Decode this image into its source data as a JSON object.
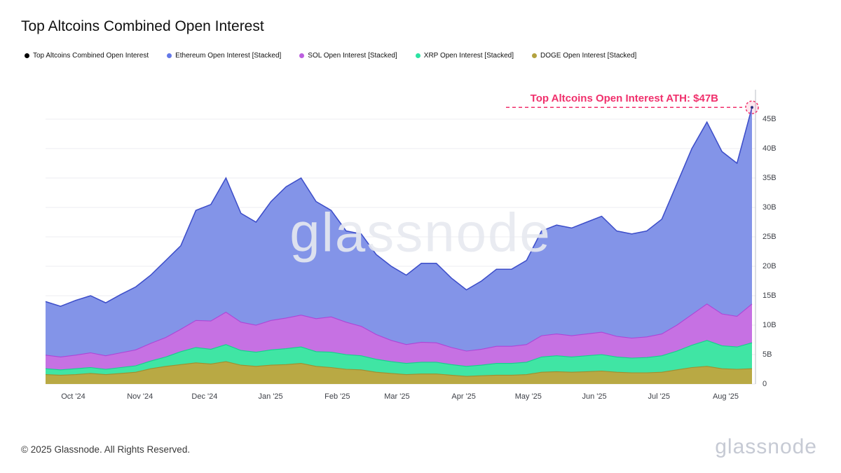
{
  "header": {
    "title": "Top Altcoins Combined Open Interest"
  },
  "legend": {
    "items": [
      {
        "label": "Top Altcoins Combined Open Interest",
        "color": "#000000"
      },
      {
        "label": "Ethereum Open Interest [Stacked]",
        "color": "#6478e8"
      },
      {
        "label": "SOL Open Interest [Stacked]",
        "color": "#bc5fdf"
      },
      {
        "label": "XRP Open Interest [Stacked]",
        "color": "#2be3a2"
      },
      {
        "label": "DOGE Open Interest [Stacked]",
        "color": "#b3a23f"
      }
    ]
  },
  "annotation": {
    "text": "Top Altcoins Open Interest ATH: $47B",
    "value": 47,
    "color": "#f0306c"
  },
  "watermark": {
    "text": "glassnode"
  },
  "footer": {
    "copyright": "© 2025 Glassnode. All Rights Reserved.",
    "logo": "glassnode"
  },
  "chart_data": {
    "type": "area",
    "stacked": true,
    "title": "Top Altcoins Combined Open Interest",
    "unit": "USD billions",
    "x_start": "2024-09-18",
    "x_end": "2025-08-15",
    "ylim": [
      0,
      50
    ],
    "grid": true,
    "legend_position": "top",
    "y_ticks": [
      "0",
      "5B",
      "10B",
      "15B",
      "20B",
      "25B",
      "30B",
      "35B",
      "40B",
      "45B"
    ],
    "y_tick_values": [
      0,
      5,
      10,
      15,
      20,
      25,
      30,
      35,
      40,
      45
    ],
    "x_ticks": [
      {
        "label": "Oct '24",
        "pos": 0.039
      },
      {
        "label": "Nov '24",
        "pos": 0.133
      },
      {
        "label": "Dec '24",
        "pos": 0.224
      },
      {
        "label": "Jan '25",
        "pos": 0.317
      },
      {
        "label": "Feb '25",
        "pos": 0.411
      },
      {
        "label": "Mar '25",
        "pos": 0.495
      },
      {
        "label": "Apr '25",
        "pos": 0.589
      },
      {
        "label": "May '25",
        "pos": 0.68
      },
      {
        "label": "Jun '25",
        "pos": 0.773
      },
      {
        "label": "Jul '25",
        "pos": 0.864
      },
      {
        "label": "Aug '25",
        "pos": 0.958
      }
    ],
    "series": [
      {
        "name": "DOGE Open Interest [Stacked]",
        "color": "#b9a944",
        "stroke": "#9f8e2f",
        "values": [
          1.6,
          1.5,
          1.6,
          1.8,
          1.6,
          1.8,
          2.0,
          2.6,
          3.0,
          3.3,
          3.6,
          3.4,
          3.8,
          3.2,
          3.0,
          3.2,
          3.3,
          3.5,
          3.0,
          2.8,
          2.5,
          2.4,
          2.0,
          1.8,
          1.6,
          1.7,
          1.7,
          1.5,
          1.3,
          1.4,
          1.5,
          1.5,
          1.6,
          2.0,
          2.1,
          2.0,
          2.1,
          2.2,
          2.0,
          1.9,
          1.9,
          2.0,
          2.4,
          2.8,
          3.0,
          2.6,
          2.5,
          2.6
        ]
      },
      {
        "name": "XRP Open Interest [Stacked]",
        "color": "#40e5a4",
        "stroke": "#14d08b",
        "values": [
          1.0,
          0.9,
          1.0,
          1.0,
          0.9,
          1.0,
          1.1,
          1.3,
          1.6,
          2.2,
          2.6,
          2.5,
          2.9,
          2.5,
          2.4,
          2.6,
          2.7,
          2.8,
          2.5,
          2.6,
          2.5,
          2.4,
          2.2,
          2.0,
          1.9,
          2.0,
          2.0,
          1.8,
          1.7,
          1.8,
          2.0,
          2.0,
          2.1,
          2.6,
          2.7,
          2.6,
          2.7,
          2.8,
          2.6,
          2.5,
          2.6,
          2.8,
          3.2,
          3.8,
          4.4,
          3.9,
          3.8,
          4.4
        ]
      },
      {
        "name": "SOL Open Interest [Stacked]",
        "color": "#c671e3",
        "stroke": "#ad46d6",
        "values": [
          2.3,
          2.2,
          2.3,
          2.5,
          2.3,
          2.5,
          2.7,
          3.0,
          3.3,
          3.8,
          4.6,
          4.8,
          5.5,
          4.8,
          4.6,
          5.0,
          5.2,
          5.4,
          5.6,
          6.0,
          5.5,
          5.0,
          4.2,
          3.6,
          3.2,
          3.4,
          3.3,
          2.9,
          2.6,
          2.7,
          2.9,
          2.9,
          3.0,
          3.6,
          3.7,
          3.6,
          3.7,
          3.8,
          3.5,
          3.4,
          3.5,
          3.7,
          4.4,
          5.2,
          6.2,
          5.4,
          5.2,
          6.6
        ]
      },
      {
        "name": "Ethereum Open Interest [Stacked]",
        "color": "#8394e8",
        "stroke": "#3d4ec9",
        "values": [
          9.1,
          8.6,
          9.3,
          9.7,
          9.0,
          9.9,
          10.7,
          11.6,
          13.1,
          14.2,
          18.7,
          19.8,
          22.8,
          18.5,
          17.5,
          20.2,
          22.3,
          23.3,
          19.9,
          18.1,
          15.5,
          15.7,
          13.6,
          12.6,
          11.8,
          13.4,
          13.5,
          11.8,
          10.4,
          11.6,
          13.1,
          13.1,
          14.3,
          17.8,
          18.5,
          18.3,
          19.0,
          19.7,
          17.9,
          17.7,
          18.0,
          19.5,
          24.0,
          28.2,
          30.9,
          27.6,
          26.0,
          33.4
        ]
      }
    ],
    "combined_line_color": "#3d4ec9",
    "ath_marker": {
      "value": 47,
      "color": "#f0306c"
    }
  }
}
